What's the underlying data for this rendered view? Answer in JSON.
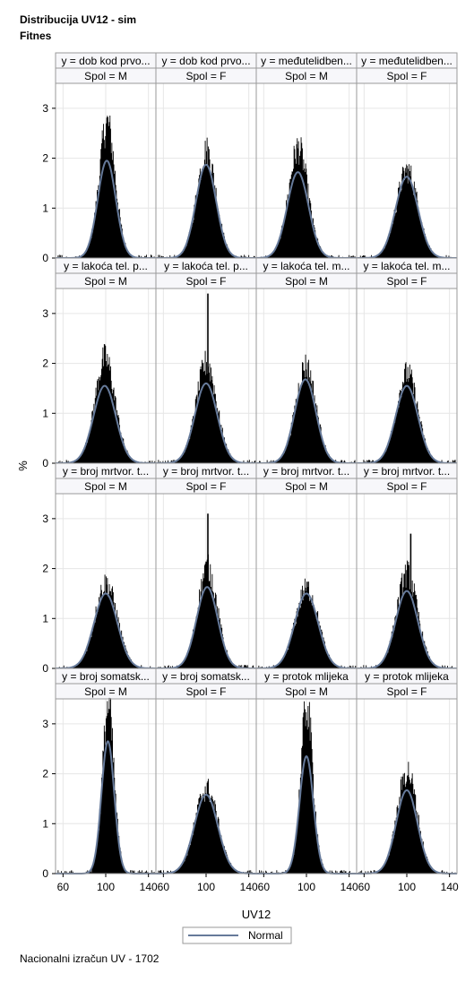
{
  "titles": {
    "line1": "Distribucija UV12 - sim",
    "line2": "Fitnes"
  },
  "footnote": "Nacionalni izračun UV - 1702",
  "colors": {
    "histogram": "#000000",
    "normal_curve": "#667a9a",
    "header_fill": "#f7f7fa",
    "grid": "#e6e6e6",
    "frame": "#9a9a9a"
  },
  "chart_data": {
    "type": "histogram-panel",
    "xlabel": "UV12",
    "ylabel": "%",
    "xlim": [
      53,
      147
    ],
    "ylim": [
      0,
      3.5
    ],
    "xticks": [
      60,
      100,
      140
    ],
    "yticks": [
      0,
      1,
      2,
      3
    ],
    "column_headers": [
      "Spol = M",
      "Spol = F",
      "Spol = M",
      "Spol = F"
    ],
    "legend": {
      "label": "Normal",
      "position": "bottom"
    },
    "rows": [
      {
        "cells": [
          {
            "y_label": "y = dob kod prvo...",
            "sex": "Spol = M",
            "normal_mean": 101,
            "normal_peak": 1.95,
            "normal_sd": 8.5,
            "hist_peak": 2.7,
            "spikes": []
          },
          {
            "y_label": "y = dob kod prvo...",
            "sex": "Spol = F",
            "normal_mean": 100,
            "normal_peak": 1.87,
            "normal_sd": 9.5,
            "hist_peak": 2.15,
            "spikes": []
          },
          {
            "y_label": "y = međutelidben...",
            "sex": "Spol = M",
            "normal_mean": 92,
            "normal_peak": 1.72,
            "normal_sd": 10,
            "hist_peak": 2.2,
            "spikes": []
          },
          {
            "y_label": "y = međutelidben...",
            "sex": "Spol = F",
            "normal_mean": 100,
            "normal_peak": 1.63,
            "normal_sd": 10.5,
            "hist_peak": 1.75,
            "spikes": []
          }
        ]
      },
      {
        "cells": [
          {
            "y_label": "y = lakoća tel. p...",
            "sex": "Spol = M",
            "normal_mean": 99,
            "normal_peak": 1.55,
            "normal_sd": 10.5,
            "hist_peak": 2.1,
            "spikes": []
          },
          {
            "y_label": "y = lakoća tel. p...",
            "sex": "Spol = F",
            "normal_mean": 100,
            "normal_peak": 1.6,
            "normal_sd": 10.5,
            "hist_peak": 2.0,
            "spikes": [
              {
                "x": 101,
                "y": 3.4
              }
            ]
          },
          {
            "y_label": "y = lakoća tel. m...",
            "sex": "Spol = M",
            "normal_mean": 99,
            "normal_peak": 1.68,
            "normal_sd": 10,
            "hist_peak": 1.95,
            "spikes": []
          },
          {
            "y_label": "y = lakoća tel. m...",
            "sex": "Spol = F",
            "normal_mean": 100,
            "normal_peak": 1.55,
            "normal_sd": 10.5,
            "hist_peak": 1.8,
            "spikes": []
          }
        ]
      },
      {
        "cells": [
          {
            "y_label": "y = broj mrtvor. t...",
            "sex": "Spol = M",
            "normal_mean": 100,
            "normal_peak": 1.5,
            "normal_sd": 11,
            "hist_peak": 1.7,
            "spikes": []
          },
          {
            "y_label": "y = broj mrtvor. t...",
            "sex": "Spol = F",
            "normal_mean": 101,
            "normal_peak": 1.63,
            "normal_sd": 10,
            "hist_peak": 2.0,
            "spikes": [
              {
                "x": 101,
                "y": 3.1
              }
            ]
          },
          {
            "y_label": "y = broj mrtvor. t...",
            "sex": "Spol = M",
            "normal_mean": 100,
            "normal_peak": 1.5,
            "normal_sd": 11,
            "hist_peak": 1.6,
            "spikes": []
          },
          {
            "y_label": "y = broj mrtvor. t...",
            "sex": "Spol = F",
            "normal_mean": 100,
            "normal_peak": 1.55,
            "normal_sd": 10.5,
            "hist_peak": 1.9,
            "spikes": [
              {
                "x": 103,
                "y": 2.7
              }
            ]
          }
        ]
      },
      {
        "cells": [
          {
            "y_label": "y = broj somatsk...",
            "sex": "Spol = M",
            "normal_mean": 102,
            "normal_peak": 2.65,
            "normal_sd": 6,
            "hist_peak": 3.35,
            "spikes": []
          },
          {
            "y_label": "y = broj somatsk...",
            "sex": "Spol = F",
            "normal_mean": 100,
            "normal_peak": 1.58,
            "normal_sd": 11,
            "hist_peak": 1.7,
            "spikes": []
          },
          {
            "y_label": "y = protok mlijeka",
            "sex": "Spol = M",
            "normal_mean": 100,
            "normal_peak": 2.35,
            "normal_sd": 6.5,
            "hist_peak": 3.35,
            "spikes": []
          },
          {
            "y_label": "y = protok mlijeka",
            "sex": "Spol = F",
            "normal_mean": 100,
            "normal_peak": 1.67,
            "normal_sd": 10,
            "hist_peak": 2.05,
            "spikes": []
          }
        ]
      }
    ]
  }
}
